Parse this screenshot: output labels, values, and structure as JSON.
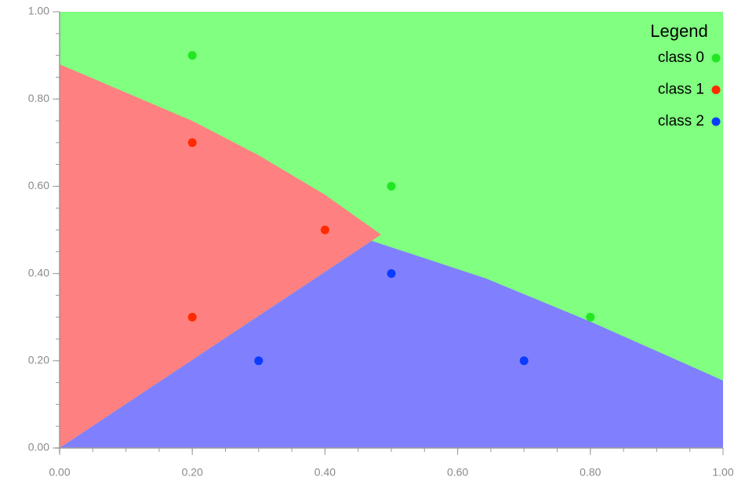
{
  "chart_data": {
    "type": "scatter",
    "legend_title": "Legend",
    "legend": "upper right",
    "series": [
      {
        "name": "class 0",
        "color": "#22e622",
        "x": [
          0.2,
          0.5,
          0.8
        ],
        "y": [
          0.9,
          0.6,
          0.3
        ]
      },
      {
        "name": "class 1",
        "color": "#ff2a00",
        "x": [
          0.2,
          0.4,
          0.2
        ],
        "y": [
          0.7,
          0.5,
          0.3
        ]
      },
      {
        "name": "class 2",
        "color": "#0a3cff",
        "x": [
          0.3,
          0.5,
          0.7
        ],
        "y": [
          0.2,
          0.4,
          0.2
        ]
      }
    ],
    "xlim": [
      0,
      1
    ],
    "ylim": [
      0,
      1
    ],
    "xticks": [
      {
        "value": 0,
        "label": "0.00"
      },
      {
        "value": 0.2,
        "label": "0.20"
      },
      {
        "value": 0.4,
        "label": "0.40"
      },
      {
        "value": 0.6,
        "label": "0.60"
      },
      {
        "value": 0.8,
        "label": "0.80"
      },
      {
        "value": 1,
        "label": "1.00"
      }
    ],
    "yticks": [
      {
        "value": 0,
        "label": "0.00"
      },
      {
        "value": 0.2,
        "label": "0.20"
      },
      {
        "value": 0.4,
        "label": "0.40"
      },
      {
        "value": 0.6,
        "label": "0.60"
      },
      {
        "value": 0.8,
        "label": "0.80"
      },
      {
        "value": 1,
        "label": "1.00"
      }
    ]
  }
}
